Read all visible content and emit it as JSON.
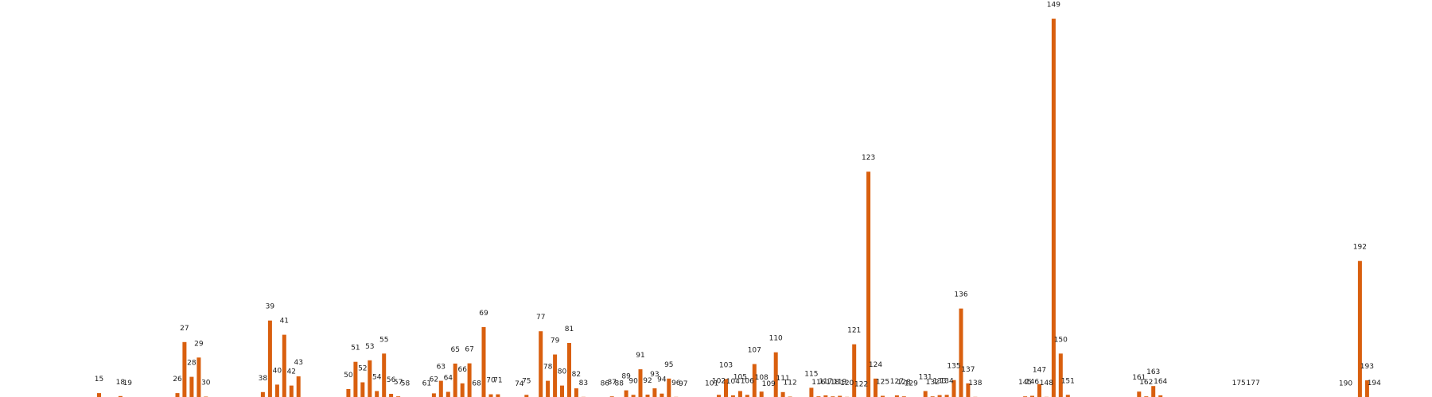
{
  "chart_data": {
    "type": "bar",
    "bar_color": "#d95f0e",
    "background": "#ffffff",
    "grid": false,
    "axes_visible": false,
    "title": "",
    "xlabel": "",
    "ylabel": "",
    "xlim": [
      4,
      201
    ],
    "ylim": [
      0,
      152
    ],
    "points": [
      {
        "x": 15,
        "y": 2.2,
        "label": "15"
      },
      {
        "x": 18,
        "y": 1.0,
        "label": "18"
      },
      {
        "x": 19,
        "y": 0.6,
        "label": "19"
      },
      {
        "x": 26,
        "y": 2.2,
        "label": "26"
      },
      {
        "x": 27,
        "y": 22.6,
        "label": "27"
      },
      {
        "x": 28,
        "y": 8.7,
        "label": "28"
      },
      {
        "x": 29,
        "y": 16.4,
        "label": "29"
      },
      {
        "x": 30,
        "y": 0.8,
        "label": "30"
      },
      {
        "x": 38,
        "y": 2.6,
        "label": "38"
      },
      {
        "x": 39,
        "y": 31.2,
        "label": "39"
      },
      {
        "x": 40,
        "y": 5.6,
        "label": "40"
      },
      {
        "x": 41,
        "y": 25.5,
        "label": "41"
      },
      {
        "x": 42,
        "y": 5.2,
        "label": "42"
      },
      {
        "x": 43,
        "y": 8.9,
        "label": "43"
      },
      {
        "x": 50,
        "y": 3.8,
        "label": "50"
      },
      {
        "x": 51,
        "y": 14.7,
        "label": "51"
      },
      {
        "x": 52,
        "y": 6.5,
        "label": "52"
      },
      {
        "x": 53,
        "y": 15.3,
        "label": "53"
      },
      {
        "x": 54,
        "y": 3.0,
        "label": "54"
      },
      {
        "x": 55,
        "y": 18.0,
        "label": "55"
      },
      {
        "x": 56,
        "y": 1.9,
        "label": "56"
      },
      {
        "x": 57,
        "y": 0.9,
        "label": "57"
      },
      {
        "x": 58,
        "y": 0.5,
        "label": "58"
      },
      {
        "x": 61,
        "y": 0.5,
        "label": "61"
      },
      {
        "x": 62,
        "y": 2.1,
        "label": "62"
      },
      {
        "x": 63,
        "y": 7.1,
        "label": "63"
      },
      {
        "x": 64,
        "y": 2.7,
        "label": "64"
      },
      {
        "x": 65,
        "y": 14.0,
        "label": "65"
      },
      {
        "x": 66,
        "y": 6.1,
        "label": "66"
      },
      {
        "x": 67,
        "y": 14.1,
        "label": "67"
      },
      {
        "x": 68,
        "y": 0.4,
        "label": "68"
      },
      {
        "x": 69,
        "y": 28.6,
        "label": "69"
      },
      {
        "x": 70,
        "y": 1.7,
        "label": "70"
      },
      {
        "x": 71,
        "y": 1.7,
        "label": "71"
      },
      {
        "x": 74,
        "y": 0.3,
        "label": "74"
      },
      {
        "x": 75,
        "y": 1.5,
        "label": "75"
      },
      {
        "x": 77,
        "y": 26.9,
        "label": "77"
      },
      {
        "x": 78,
        "y": 7.1,
        "label": "78"
      },
      {
        "x": 79,
        "y": 17.6,
        "label": "79"
      },
      {
        "x": 80,
        "y": 5.2,
        "label": "80"
      },
      {
        "x": 81,
        "y": 22.2,
        "label": "81"
      },
      {
        "x": 82,
        "y": 4.1,
        "label": "82"
      },
      {
        "x": 83,
        "y": 0.7,
        "label": "83"
      },
      {
        "x": 86,
        "y": 0.5,
        "label": "86"
      },
      {
        "x": 87,
        "y": 0.9,
        "label": "87"
      },
      {
        "x": 88,
        "y": 0.5,
        "label": "88"
      },
      {
        "x": 89,
        "y": 3.3,
        "label": "89"
      },
      {
        "x": 90,
        "y": 1.5,
        "label": "90"
      },
      {
        "x": 91,
        "y": 11.7,
        "label": "91"
      },
      {
        "x": 92,
        "y": 1.6,
        "label": "92"
      },
      {
        "x": 93,
        "y": 4.1,
        "label": "93"
      },
      {
        "x": 94,
        "y": 2.0,
        "label": "94"
      },
      {
        "x": 95,
        "y": 8.0,
        "label": "95"
      },
      {
        "x": 96,
        "y": 0.7,
        "label": "96"
      },
      {
        "x": 97,
        "y": 0.3,
        "label": "97"
      },
      {
        "x": 101,
        "y": 0.5,
        "label": "101"
      },
      {
        "x": 102,
        "y": 1.5,
        "label": "102"
      },
      {
        "x": 103,
        "y": 7.8,
        "label": "103"
      },
      {
        "x": 104,
        "y": 1.3,
        "label": "104"
      },
      {
        "x": 105,
        "y": 3.0,
        "label": "105"
      },
      {
        "x": 106,
        "y": 1.5,
        "label": "106"
      },
      {
        "x": 107,
        "y": 13.8,
        "label": "107"
      },
      {
        "x": 108,
        "y": 2.8,
        "label": "108"
      },
      {
        "x": 109,
        "y": 0.3,
        "label": "109"
      },
      {
        "x": 110,
        "y": 18.5,
        "label": "110"
      },
      {
        "x": 111,
        "y": 2.6,
        "label": "111"
      },
      {
        "x": 112,
        "y": 0.8,
        "label": "112"
      },
      {
        "x": 115,
        "y": 4.3,
        "label": "115"
      },
      {
        "x": 116,
        "y": 0.9,
        "label": "116"
      },
      {
        "x": 117,
        "y": 1.3,
        "label": "117"
      },
      {
        "x": 118,
        "y": 0.9,
        "label": "118"
      },
      {
        "x": 119,
        "y": 1.1,
        "label": "119"
      },
      {
        "x": 120,
        "y": 0.7,
        "label": "120"
      },
      {
        "x": 121,
        "y": 21.7,
        "label": "121"
      },
      {
        "x": 122,
        "y": 0.2,
        "label": "122"
      },
      {
        "x": 123,
        "y": 90.7,
        "label": "123"
      },
      {
        "x": 124,
        "y": 8.0,
        "label": "124"
      },
      {
        "x": 125,
        "y": 1.1,
        "label": "125"
      },
      {
        "x": 127,
        "y": 1.3,
        "label": "127"
      },
      {
        "x": 128,
        "y": 0.9,
        "label": "128"
      },
      {
        "x": 129,
        "y": 0.5,
        "label": "129"
      },
      {
        "x": 131,
        "y": 3.0,
        "label": "131"
      },
      {
        "x": 132,
        "y": 0.9,
        "label": "132"
      },
      {
        "x": 133,
        "y": 1.4,
        "label": "133"
      },
      {
        "x": 134,
        "y": 1.5,
        "label": "134"
      },
      {
        "x": 135,
        "y": 7.4,
        "label": "135"
      },
      {
        "x": 136,
        "y": 36.0,
        "label": "136"
      },
      {
        "x": 137,
        "y": 6.1,
        "label": "137"
      },
      {
        "x": 138,
        "y": 0.7,
        "label": "138"
      },
      {
        "x": 145,
        "y": 0.9,
        "label": "145"
      },
      {
        "x": 146,
        "y": 1.1,
        "label": "146"
      },
      {
        "x": 147,
        "y": 5.8,
        "label": "147"
      },
      {
        "x": 148,
        "y": 0.7,
        "label": "148"
      },
      {
        "x": 149,
        "y": 151.8,
        "label": "149"
      },
      {
        "x": 150,
        "y": 18.0,
        "label": "150"
      },
      {
        "x": 151,
        "y": 1.5,
        "label": "151"
      },
      {
        "x": 161,
        "y": 2.8,
        "label": "161"
      },
      {
        "x": 162,
        "y": 0.9,
        "label": "162"
      },
      {
        "x": 163,
        "y": 5.0,
        "label": "163"
      },
      {
        "x": 164,
        "y": 1.3,
        "label": "164"
      },
      {
        "x": 175,
        "y": 0.6,
        "label": "175"
      },
      {
        "x": 177,
        "y": 0.6,
        "label": "177"
      },
      {
        "x": 190,
        "y": 0.5,
        "label": "190"
      },
      {
        "x": 192,
        "y": 55.0,
        "label": "192"
      },
      {
        "x": 193,
        "y": 7.3,
        "label": "193"
      },
      {
        "x": 194,
        "y": 0.6,
        "label": "194"
      }
    ]
  }
}
